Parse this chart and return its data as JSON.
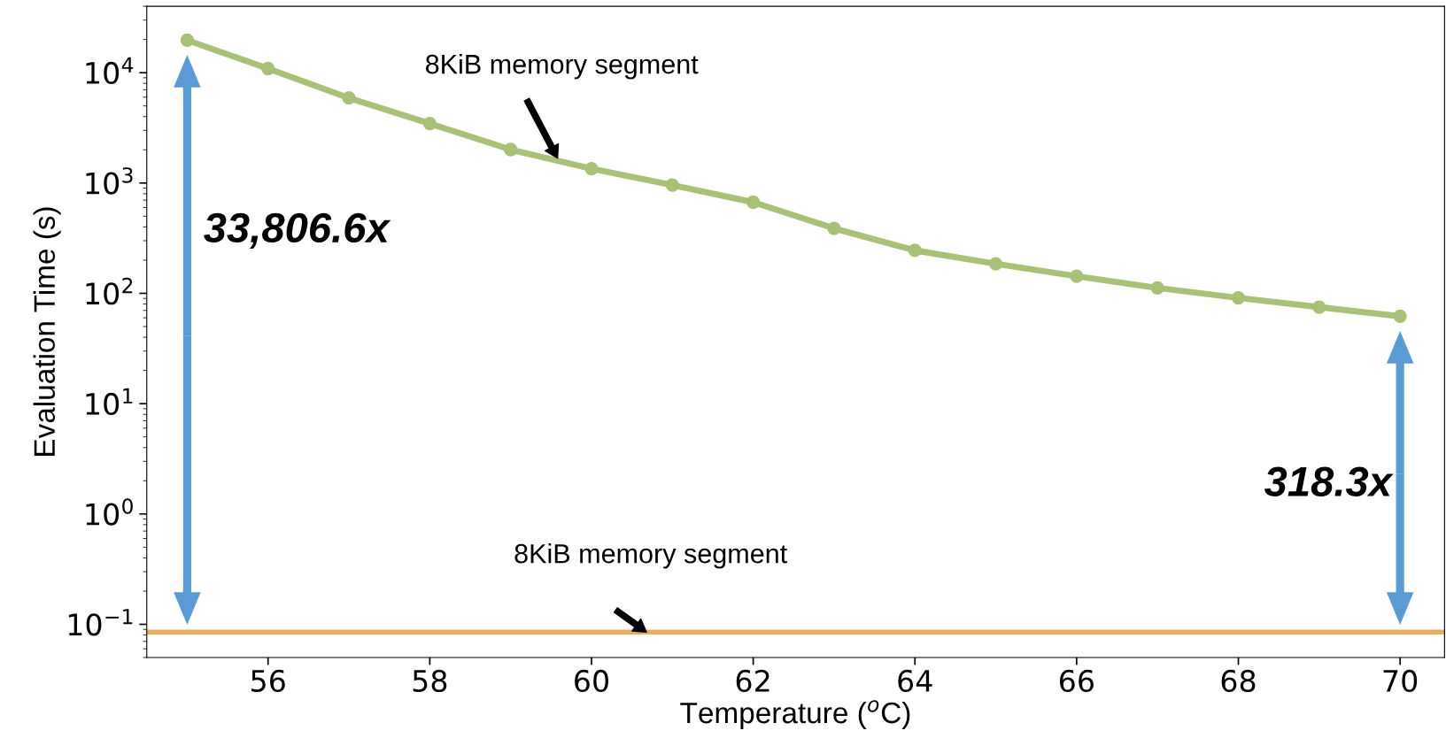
{
  "chart_data": {
    "type": "line",
    "xlabel": "Temperature ($^{o}$C)",
    "ylabel": "Evaluation Time (s)",
    "log": "y",
    "x": [
      55,
      56,
      57,
      58,
      59,
      60,
      61,
      62,
      63,
      64,
      65,
      66,
      67,
      68,
      69,
      70
    ],
    "series": [
      {
        "color": "#a9c077",
        "values": [
          19700,
          10900,
          5900,
          3460,
          2010,
          1350,
          958,
          670,
          388,
          245,
          185,
          143,
          112,
          91,
          75,
          62
        ]
      }
    ],
    "ref_lines": [
      {
        "axis": "y",
        "value": 0.085,
        "color": "#e8ae5c",
        "line_style": "solid"
      }
    ],
    "annotations": [
      {
        "text": "8KiB memory segment",
        "x": 59.58,
        "y": 1680
      },
      {
        "text": "8KiB memory segment",
        "x": 60.68,
        "y": 0.085
      },
      "33,806.6x",
      "318.3x"
    ],
    "xlim": [
      54.5,
      70.55
    ],
    "ylim": [
      0.05,
      40000
    ],
    "xticks": [
      56,
      58,
      60,
      62,
      64,
      66,
      68,
      70
    ],
    "yticks": [
      {
        "value": 0.1,
        "label": "10$^{−1}$"
      },
      {
        "value": 1,
        "label": "10$^{0}$"
      },
      {
        "value": 10,
        "label": "10$^{1}$"
      },
      {
        "value": 100,
        "label": "10$^{2}$"
      },
      {
        "value": 1000,
        "label": "10$^{3}$"
      },
      {
        "value": 10000,
        "label": "10$^{4}$"
      }
    ],
    "marker": "circle",
    "line_style": "solid",
    "grid": false
  }
}
